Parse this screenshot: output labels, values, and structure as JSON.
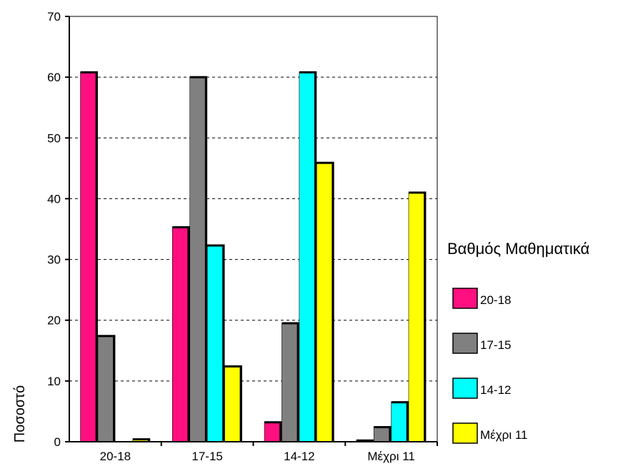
{
  "chart_data": {
    "type": "bar",
    "title": "",
    "xlabel": "",
    "ylabel": "Ποσοστό",
    "ylim": [
      0,
      70
    ],
    "yticks": [
      "0",
      "10",
      "20",
      "30",
      "40",
      "50",
      "60",
      "70"
    ],
    "grid": "horizontal-dashed",
    "categories": [
      "20-18",
      "17-15",
      "14-12",
      "Μέχρι 11"
    ],
    "legend": {
      "title": "Βαθμός Μαθηματικά",
      "position": "right"
    },
    "series": [
      {
        "name": "20-18",
        "color": "#ff0f7f",
        "values": [
          60.8,
          35.3,
          3.2,
          0.2
        ]
      },
      {
        "name": "17-15",
        "color": "#808080",
        "values": [
          17.4,
          60.0,
          19.5,
          2.4
        ]
      },
      {
        "name": "14-12",
        "color": "#00ffff",
        "values": [
          0,
          32.3,
          60.8,
          6.5
        ]
      },
      {
        "name": "Μέχρι 11",
        "color": "#ffff00",
        "values": [
          0.4,
          12.4,
          45.9,
          41.0
        ]
      }
    ]
  }
}
